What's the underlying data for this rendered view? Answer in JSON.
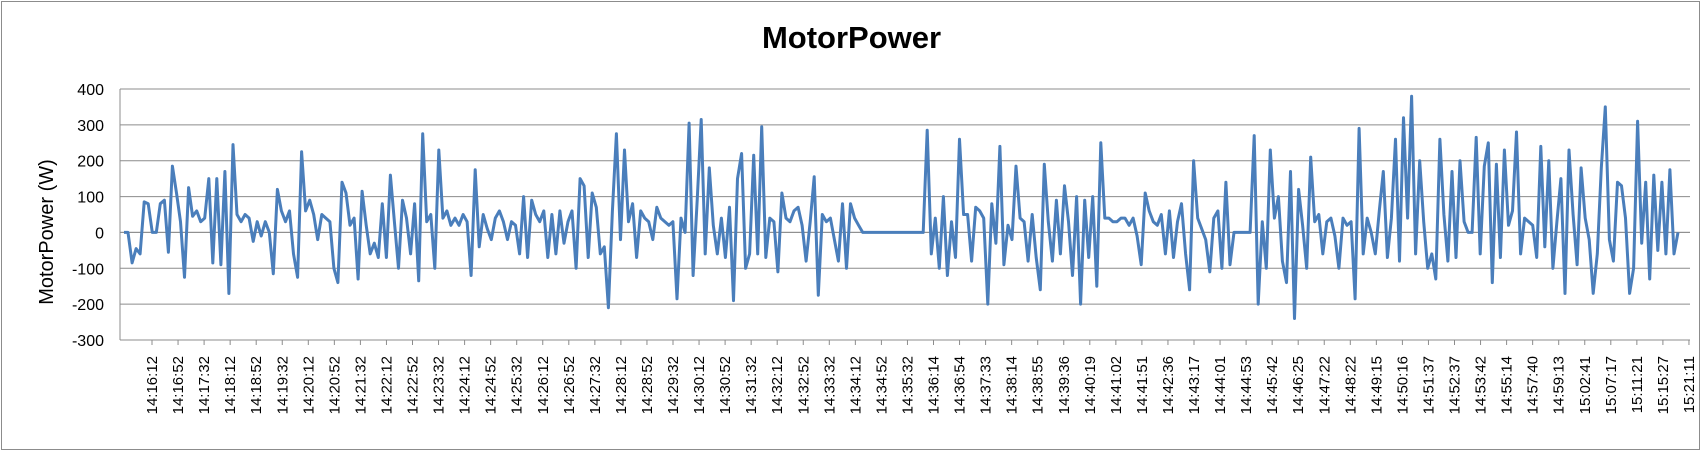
{
  "chart_data": {
    "type": "line",
    "title": "MotorPower",
    "xlabel": "",
    "ylabel": "MotorPower (W)",
    "ylim": [
      -300,
      400
    ],
    "yticks": [
      400,
      300,
      200,
      100,
      0,
      -100,
      -200,
      -300
    ],
    "grid": true,
    "legend": "none",
    "series_color": "#4a7ebb",
    "x_tick_labels": [
      "14:16:12",
      "14:16:52",
      "14:17:32",
      "14:18:12",
      "14:18:52",
      "14:19:32",
      "14:20:12",
      "14:20:52",
      "14:21:32",
      "14:22:12",
      "14:22:52",
      "14:23:32",
      "14:24:12",
      "14:24:52",
      "14:25:32",
      "14:26:12",
      "14:26:52",
      "14:27:32",
      "14:28:12",
      "14:28:52",
      "14:29:32",
      "14:30:12",
      "14:30:52",
      "14:31:32",
      "14:32:12",
      "14:32:52",
      "14:33:32",
      "14:34:12",
      "14:34:52",
      "14:35:32",
      "14:36:14",
      "14:36:54",
      "14:37:33",
      "14:38:14",
      "14:38:55",
      "14:39:36",
      "14:40:19",
      "14:41:02",
      "14:41:51",
      "14:42:36",
      "14:43:17",
      "14:44:01",
      "14:44:53",
      "14:45:42",
      "14:46:25",
      "14:47:22",
      "14:48:22",
      "14:49:15",
      "14:50:16",
      "14:51:37",
      "14:52:37",
      "14:53:42",
      "14:55:14",
      "14:57:40",
      "14:59:13",
      "15:02:41",
      "15:07:17",
      "15:11:21",
      "15:15:27",
      "15:21:11"
    ],
    "series": [
      {
        "values": [
          0,
          0,
          -85,
          -45,
          -60,
          85,
          80,
          0,
          0,
          80,
          90,
          -55,
          185,
          110,
          30,
          -125,
          125,
          45,
          60,
          30,
          40,
          150,
          -85,
          150,
          -90,
          170,
          -170,
          245,
          50,
          30,
          50,
          40,
          -25,
          30,
          -10,
          30,
          0,
          -115,
          120,
          60,
          30,
          60,
          -60,
          -125,
          225,
          60,
          90,
          50,
          -20,
          50,
          40,
          30,
          -100,
          -140,
          140,
          110,
          20,
          40,
          -130,
          115,
          20,
          -60,
          -30,
          -70,
          80,
          -70,
          160,
          30,
          -100,
          90,
          40,
          -60,
          80,
          -135,
          275,
          30,
          50,
          -100,
          230,
          40,
          60,
          20,
          40,
          20,
          50,
          30,
          -120,
          175,
          -40,
          50,
          10,
          -20,
          40,
          60,
          30,
          -20,
          30,
          20,
          -60,
          100,
          -70,
          90,
          50,
          30,
          60,
          -70,
          50,
          -60,
          60,
          -30,
          30,
          60,
          -100,
          150,
          130,
          -70,
          110,
          70,
          -60,
          -40,
          -210,
          60,
          275,
          -20,
          230,
          30,
          80,
          -70,
          60,
          40,
          30,
          -20,
          70,
          40,
          30,
          20,
          30,
          -185,
          40,
          0,
          305,
          -120,
          90,
          315,
          -60,
          180,
          20,
          -60,
          40,
          -70,
          70,
          -190,
          150,
          220,
          -100,
          -60,
          215,
          -60,
          295,
          -70,
          40,
          30,
          -110,
          110,
          40,
          30,
          60,
          70,
          20,
          -80,
          30,
          155,
          -175,
          50,
          30,
          40,
          -20,
          -80,
          80,
          -100,
          80,
          40,
          20,
          0,
          0,
          0,
          0,
          0,
          0,
          0,
          0,
          0,
          0,
          0,
          0,
          0,
          0,
          0,
          0,
          285,
          -60,
          40,
          -100,
          100,
          -120,
          30,
          -70,
          260,
          50,
          50,
          -80,
          70,
          60,
          40,
          -200,
          80,
          -30,
          240,
          -90,
          20,
          -20,
          185,
          40,
          30,
          -80,
          50,
          -70,
          -160,
          190,
          30,
          -80,
          90,
          -60,
          130,
          30,
          -120,
          100,
          -200,
          90,
          -70,
          100,
          -150,
          250,
          40,
          40,
          30,
          30,
          40,
          40,
          20,
          40,
          -10,
          -90,
          110,
          60,
          30,
          20,
          50,
          -60,
          60,
          -70,
          30,
          80,
          -60,
          -160,
          200,
          40,
          10,
          -20,
          -110,
          40,
          60,
          -100,
          140,
          -90,
          0,
          0,
          0,
          0,
          0,
          270,
          -200,
          30,
          -100,
          230,
          40,
          100,
          -80,
          -140,
          170,
          -240,
          120,
          20,
          -100,
          210,
          30,
          50,
          -60,
          30,
          40,
          -10,
          -100,
          40,
          20,
          30,
          -185,
          290,
          -60,
          40,
          0,
          -60,
          60,
          170,
          -70,
          40,
          260,
          -80,
          320,
          40,
          380,
          -60,
          200,
          30,
          -100,
          -60,
          -130,
          260,
          50,
          -80,
          170,
          -70,
          200,
          30,
          0,
          0,
          265,
          -60,
          185,
          250,
          -140,
          190,
          -70,
          230,
          20,
          60,
          280,
          -60,
          40,
          30,
          20,
          -70,
          240,
          -40,
          200,
          -100,
          30,
          150,
          -170,
          230,
          50,
          -90,
          180,
          40,
          -20,
          -170,
          -60,
          180,
          350,
          -20,
          -80,
          140,
          130,
          40,
          -170,
          -100,
          310,
          -30,
          140,
          -130,
          160,
          -50,
          140,
          -60,
          175,
          -60,
          0
        ]
      }
    ]
  }
}
